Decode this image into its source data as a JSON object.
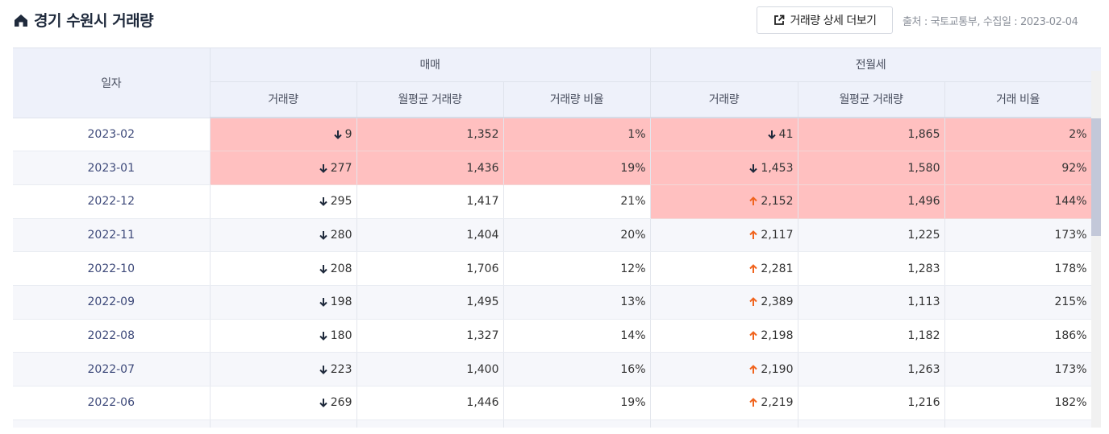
{
  "header": {
    "title": "경기 수원시 거래량",
    "detail_button": "거래량 상세 더보기",
    "source": "출처 : 국토교통부, 수집일 : 2023-02-04"
  },
  "table": {
    "headers": {
      "date": "일자",
      "group_sale": "매매",
      "group_rent": "전월세",
      "sale_volume": "거래량",
      "sale_monthly_avg": "월평균 거래량",
      "sale_ratio": "거래량 비율",
      "rent_volume": "거래량",
      "rent_monthly_avg": "월평균 거래량",
      "rent_ratio": "거래 비율"
    },
    "rows": [
      {
        "date": "2023-02",
        "sale_dir": "down",
        "sale_volume": "9",
        "sale_avg": "1,352",
        "sale_ratio": "1%",
        "rent_dir": "down",
        "rent_volume": "41",
        "rent_avg": "1,865",
        "rent_ratio": "2%",
        "sale_hl": true,
        "rent_hl": true
      },
      {
        "date": "2023-01",
        "sale_dir": "down",
        "sale_volume": "277",
        "sale_avg": "1,436",
        "sale_ratio": "19%",
        "rent_dir": "down",
        "rent_volume": "1,453",
        "rent_avg": "1,580",
        "rent_ratio": "92%",
        "sale_hl": true,
        "rent_hl": true
      },
      {
        "date": "2022-12",
        "sale_dir": "down",
        "sale_volume": "295",
        "sale_avg": "1,417",
        "sale_ratio": "21%",
        "rent_dir": "up",
        "rent_volume": "2,152",
        "rent_avg": "1,496",
        "rent_ratio": "144%",
        "sale_hl": false,
        "rent_hl": true
      },
      {
        "date": "2022-11",
        "sale_dir": "down",
        "sale_volume": "280",
        "sale_avg": "1,404",
        "sale_ratio": "20%",
        "rent_dir": "up",
        "rent_volume": "2,117",
        "rent_avg": "1,225",
        "rent_ratio": "173%",
        "sale_hl": false,
        "rent_hl": false
      },
      {
        "date": "2022-10",
        "sale_dir": "down",
        "sale_volume": "208",
        "sale_avg": "1,706",
        "sale_ratio": "12%",
        "rent_dir": "up",
        "rent_volume": "2,281",
        "rent_avg": "1,283",
        "rent_ratio": "178%",
        "sale_hl": false,
        "rent_hl": false
      },
      {
        "date": "2022-09",
        "sale_dir": "down",
        "sale_volume": "198",
        "sale_avg": "1,495",
        "sale_ratio": "13%",
        "rent_dir": "up",
        "rent_volume": "2,389",
        "rent_avg": "1,113",
        "rent_ratio": "215%",
        "sale_hl": false,
        "rent_hl": false
      },
      {
        "date": "2022-08",
        "sale_dir": "down",
        "sale_volume": "180",
        "sale_avg": "1,327",
        "sale_ratio": "14%",
        "rent_dir": "up",
        "rent_volume": "2,198",
        "rent_avg": "1,182",
        "rent_ratio": "186%",
        "sale_hl": false,
        "rent_hl": false
      },
      {
        "date": "2022-07",
        "sale_dir": "down",
        "sale_volume": "223",
        "sale_avg": "1,400",
        "sale_ratio": "16%",
        "rent_dir": "up",
        "rent_volume": "2,190",
        "rent_avg": "1,263",
        "rent_ratio": "173%",
        "sale_hl": false,
        "rent_hl": false
      },
      {
        "date": "2022-06",
        "sale_dir": "down",
        "sale_volume": "269",
        "sale_avg": "1,446",
        "sale_ratio": "19%",
        "rent_dir": "up",
        "rent_volume": "2,219",
        "rent_avg": "1,216",
        "rent_ratio": "182%",
        "sale_hl": false,
        "rent_hl": false
      }
    ]
  },
  "icons": {
    "home": "home-icon",
    "external": "external-link-icon",
    "down": "arrow-down-icon",
    "up": "arrow-up-icon"
  },
  "colors": {
    "highlight": "#ffc0c0",
    "arrow_down": "#1f2a3c",
    "arrow_up": "#f0641e",
    "header_bg": "#eef1fa",
    "date_text": "#3e4a7a"
  }
}
